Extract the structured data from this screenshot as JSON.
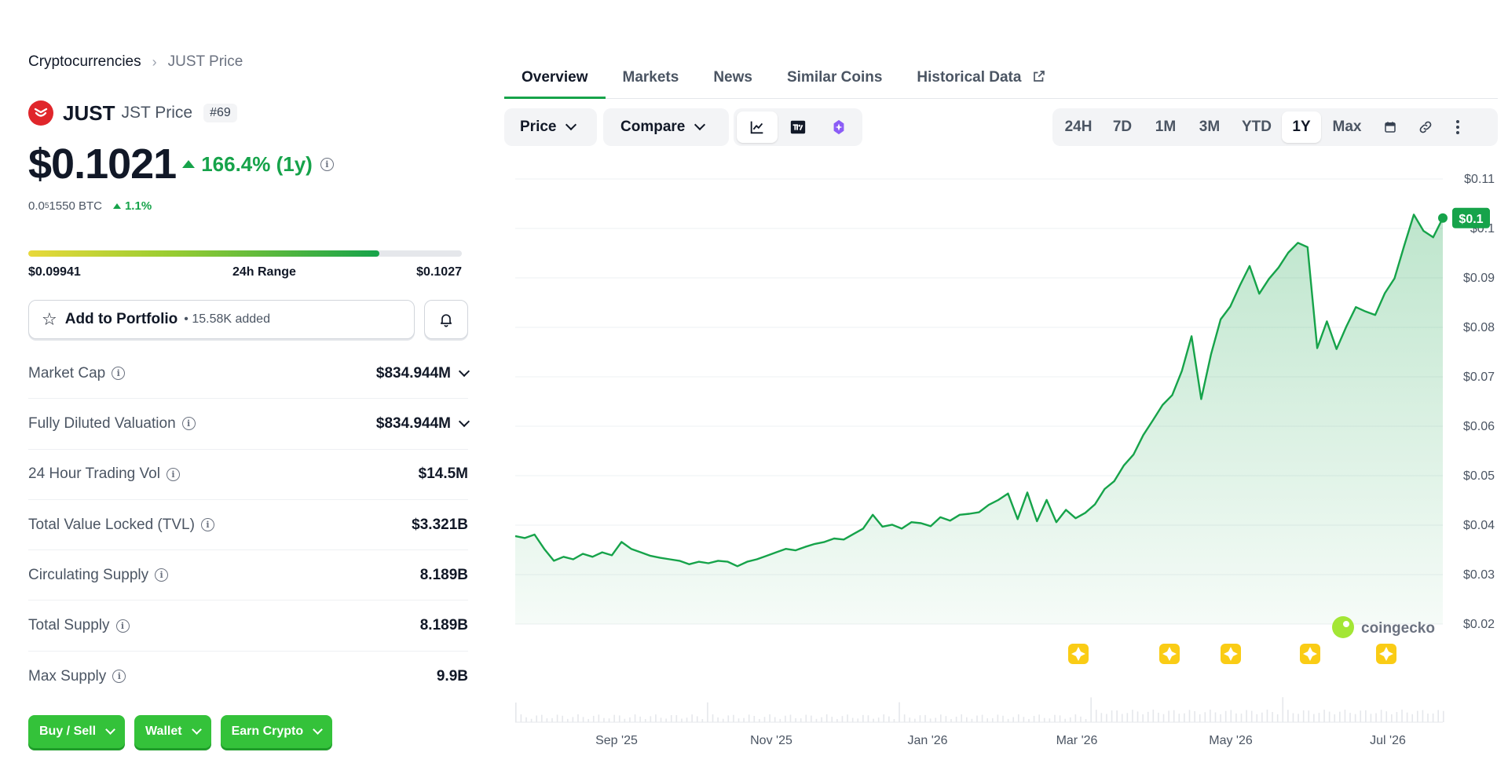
{
  "breadcrumb": {
    "root": "Cryptocurrencies",
    "current": "JUST Price"
  },
  "coin": {
    "name": "JUST",
    "sub": "JST Price",
    "rank": "#69",
    "logo_color": "#e0262b"
  },
  "price": {
    "value": "$0.1021",
    "change": "166.4% (1y)",
    "btc_prefix": "0.0",
    "btc_sub": "5",
    "btc_rest": "1550 BTC",
    "btc_change": "1.1%"
  },
  "range": {
    "low": "$0.09941",
    "label": "24h Range",
    "high": "$0.1027",
    "fill_fraction": 0.81
  },
  "portfolio": {
    "label": "Add to Portfolio",
    "bullet": "•",
    "added": "15.58K added"
  },
  "stats": [
    {
      "label": "Market Cap",
      "value": "$834.944M",
      "expandable": true
    },
    {
      "label": "Fully Diluted Valuation",
      "value": "$834.944M",
      "expandable": true
    },
    {
      "label": "24 Hour Trading Vol",
      "value": "$14.5M",
      "expandable": false
    },
    {
      "label": "Total Value Locked (TVL)",
      "value": "$3.321B",
      "expandable": false
    },
    {
      "label": "Circulating Supply",
      "value": "8.189B",
      "expandable": false
    },
    {
      "label": "Total Supply",
      "value": "8.189B",
      "expandable": false
    },
    {
      "label": "Max Supply",
      "value": "9.9B",
      "expandable": false
    }
  ],
  "actions": [
    {
      "label": "Buy / Sell"
    },
    {
      "label": "Wallet"
    },
    {
      "label": "Earn Crypto"
    }
  ],
  "tabs": [
    {
      "label": "Overview",
      "active": true
    },
    {
      "label": "Markets"
    },
    {
      "label": "News"
    },
    {
      "label": "Similar Coins"
    },
    {
      "label": "Historical Data"
    }
  ],
  "toolbar": {
    "price_label": "Price",
    "compare_label": "Compare",
    "chart_types": [
      "line-chart-icon",
      "tradingview-icon",
      "ai-sparkle-icon"
    ],
    "ranges": [
      "24H",
      "7D",
      "1M",
      "3M",
      "YTD",
      "1Y",
      "Max"
    ],
    "active_range": "1Y",
    "extra_icons": [
      "calendar-icon",
      "link-icon",
      "more-icon"
    ]
  },
  "chart_data": {
    "type": "area",
    "title": "",
    "xlabel": "",
    "ylabel": "",
    "x_ticks": [
      "Sep '25",
      "Nov '25",
      "Jan '26",
      "Mar '26",
      "May '26",
      "Jul '26"
    ],
    "y_ticks": [
      "$0.11",
      "$0.1",
      "$0.09",
      "$0.08",
      "$0.07",
      "$0.06",
      "$0.05",
      "$0.04",
      "$0.03",
      "$0.02"
    ],
    "ylim": [
      0.02,
      0.11
    ],
    "current_label": "$0.1",
    "watermark": "coingecko",
    "line_color": "#16a34a",
    "event_markers": [
      "Mar '26",
      "Apr '26",
      "Apr '26",
      "Jun '26",
      "Jul '26"
    ],
    "series": [
      {
        "values": [
          0.0378,
          0.0374,
          0.0381,
          0.0352,
          0.0328,
          0.0336,
          0.0331,
          0.0342,
          0.0336,
          0.0345,
          0.0339,
          0.0366,
          0.0352,
          0.0345,
          0.0338,
          0.0334,
          0.0331,
          0.0328,
          0.0321,
          0.0326,
          0.0323,
          0.0328,
          0.0326,
          0.0317,
          0.0326,
          0.0331,
          0.0338,
          0.0345,
          0.0352,
          0.0349,
          0.0356,
          0.0362,
          0.0366,
          0.0373,
          0.0371,
          0.0382,
          0.0393,
          0.0421,
          0.0397,
          0.0401,
          0.0393,
          0.0406,
          0.0404,
          0.0398,
          0.0416,
          0.0409,
          0.0421,
          0.0423,
          0.0426,
          0.0441,
          0.0451,
          0.0464,
          0.0412,
          0.0466,
          0.0408,
          0.0451,
          0.0406,
          0.0431,
          0.0414,
          0.0425,
          0.0442,
          0.0473,
          0.0489,
          0.0521,
          0.0543,
          0.0582,
          0.0612,
          0.0643,
          0.0663,
          0.0712,
          0.0782,
          0.0655,
          0.0745,
          0.0816,
          0.0842,
          0.0885,
          0.0924,
          0.0868,
          0.0898,
          0.0921,
          0.0951,
          0.0971,
          0.0962,
          0.0758,
          0.0812,
          0.0756,
          0.0801,
          0.0841,
          0.0832,
          0.0825,
          0.0869,
          0.0899,
          0.0965,
          0.1028,
          0.0995,
          0.0982,
          0.1021
        ]
      }
    ]
  }
}
